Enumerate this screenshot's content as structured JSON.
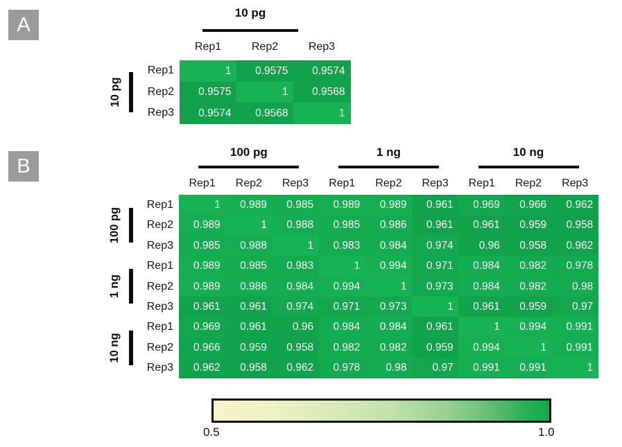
{
  "chart_data": [
    {
      "type": "heatmap",
      "panel_label": "A",
      "col_group_labels": [
        "10 pg"
      ],
      "row_group_labels": [
        "10 pg"
      ],
      "col_labels": [
        "Rep1",
        "Rep2",
        "Rep3"
      ],
      "row_labels": [
        "Rep1",
        "Rep2",
        "Rep3"
      ],
      "values": [
        [
          1,
          0.9575,
          0.9574
        ],
        [
          0.9575,
          1,
          0.9568
        ],
        [
          0.9574,
          0.9568,
          1
        ]
      ]
    },
    {
      "type": "heatmap",
      "panel_label": "B",
      "col_group_labels": [
        "100 pg",
        "1 ng",
        "10 ng"
      ],
      "row_group_labels": [
        "100 pg",
        "1 ng",
        "10 ng"
      ],
      "col_labels": [
        "Rep1",
        "Rep2",
        "Rep3",
        "Rep1",
        "Rep2",
        "Rep3",
        "Rep1",
        "Rep2",
        "Rep3"
      ],
      "row_labels": [
        "Rep1",
        "Rep2",
        "Rep3",
        "Rep1",
        "Rep2",
        "Rep3",
        "Rep1",
        "Rep2",
        "Rep3"
      ],
      "values": [
        [
          1,
          0.989,
          0.985,
          0.989,
          0.989,
          0.961,
          0.969,
          0.966,
          0.962
        ],
        [
          0.989,
          1,
          0.988,
          0.985,
          0.986,
          0.961,
          0.961,
          0.959,
          0.958
        ],
        [
          0.985,
          0.988,
          1,
          0.983,
          0.984,
          0.974,
          0.96,
          0.958,
          0.962
        ],
        [
          0.989,
          0.985,
          0.983,
          1,
          0.994,
          0.971,
          0.984,
          0.982,
          0.978
        ],
        [
          0.989,
          0.986,
          0.984,
          0.994,
          1,
          0.973,
          0.984,
          0.982,
          0.98
        ],
        [
          0.961,
          0.961,
          0.974,
          0.971,
          0.973,
          1,
          0.961,
          0.959,
          0.97
        ],
        [
          0.969,
          0.961,
          0.96,
          0.984,
          0.984,
          0.961,
          1,
          0.994,
          0.991
        ],
        [
          0.966,
          0.959,
          0.958,
          0.982,
          0.982,
          0.959,
          0.994,
          1,
          0.991
        ],
        [
          0.962,
          0.958,
          0.962,
          0.978,
          0.98,
          0.97,
          0.991,
          0.991,
          1
        ]
      ]
    }
  ],
  "colorbar": {
    "min_label": "0.5",
    "max_label": "1.0",
    "min_value": 0.5,
    "max_value": 1.0,
    "min_color": "#faf3cd",
    "max_color": "#10a84b"
  },
  "colors": {
    "diagonal_cell": "#17b254",
    "offdiag_cell_example": "#10a14a",
    "panel_badge_bg": "#9b9b9b",
    "text": "#111111"
  }
}
